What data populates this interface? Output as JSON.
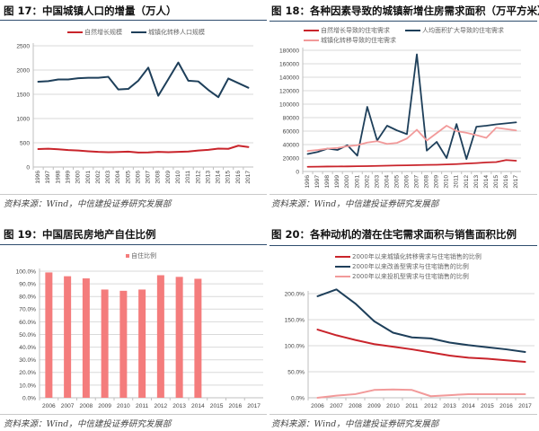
{
  "panels": [
    {
      "source": "资料来源：Wind，中信建投证券研究发展部"
    },
    {
      "source": "资料来源：Wind，中信建投证券研究发展部"
    },
    {
      "source": "资料来源：Wind，中信建投证券研究发展部"
    },
    {
      "source": "资料来源：Wind，中信建投证券研究发展部"
    }
  ],
  "chart_data": [
    {
      "type": "line",
      "title": "图 17：中国城镇人口的增量（万人）",
      "xlabel": "",
      "ylabel": "",
      "categories": [
        "1996",
        "1997",
        "1998",
        "1999",
        "2000",
        "2001",
        "2002",
        "2003",
        "2004",
        "2005",
        "2006",
        "2007",
        "2008",
        "2009",
        "2010",
        "2011",
        "2012",
        "2013",
        "2014",
        "2015",
        "2016",
        "2017"
      ],
      "ylim": [
        0,
        2500
      ],
      "yticks": [
        0,
        500,
        1000,
        1500,
        2000,
        2500
      ],
      "ytick_labels": [
        "0",
        "500",
        "1000",
        "1500",
        "2000",
        "2500"
      ],
      "grid": true,
      "legend": "top-center",
      "series": [
        {
          "name": "自然增长规模",
          "color": "#c9242b",
          "values": [
            370,
            378,
            365,
            350,
            340,
            325,
            312,
            305,
            310,
            318,
            298,
            302,
            312,
            305,
            312,
            320,
            340,
            355,
            380,
            375,
            440,
            412
          ]
        },
        {
          "name": "城镇化转移人口规模",
          "color": "#1e3f5a",
          "values": [
            1760,
            1770,
            1805,
            1805,
            1830,
            1840,
            1840,
            1860,
            1600,
            1610,
            1780,
            2050,
            1470,
            1810,
            2155,
            1780,
            1765,
            1590,
            1440,
            1825,
            1730,
            1635
          ]
        }
      ]
    },
    {
      "type": "line",
      "title": "图 18：各种因素导致的城镇新增住房需求面积（万平方米）",
      "xlabel": "",
      "ylabel": "",
      "categories": [
        "1996",
        "1997",
        "1998",
        "1999",
        "2000",
        "2001",
        "2002",
        "2003",
        "2004",
        "2005",
        "2006",
        "2007",
        "2008",
        "2009",
        "2010",
        "2011",
        "2012",
        "2013",
        "2014",
        "2015",
        "2016",
        "2017"
      ],
      "ylim": [
        0,
        180000
      ],
      "yticks": [
        0,
        20000,
        40000,
        60000,
        80000,
        100000,
        120000,
        140000,
        160000,
        180000
      ],
      "ytick_labels": [
        "0",
        "20000",
        "40000",
        "60000",
        "80000",
        "100000",
        "120000",
        "140000",
        "160000",
        "180000"
      ],
      "grid": true,
      "legend": "top",
      "series": [
        {
          "name": "自然增长导致的住宅需求",
          "color": "#c9242b",
          "values": [
            7000,
            7200,
            7400,
            7500,
            7600,
            7800,
            8000,
            8300,
            8700,
            9000,
            9200,
            9500,
            9800,
            10000,
            10500,
            11000,
            11800,
            12500,
            13500,
            14000,
            17000,
            16000
          ]
        },
        {
          "name": "人均面积扩大导致的住宅需求",
          "color": "#1e3f5a",
          "values": [
            26000,
            29000,
            34000,
            32000,
            39000,
            23500,
            96000,
            46000,
            68000,
            61000,
            55500,
            174000,
            31000,
            44000,
            20000,
            70500,
            18500,
            66500,
            68000,
            70000,
            71500,
            73000
          ]
        },
        {
          "name": "城镇化转移导致的住宅需求",
          "color": "#f29a9a",
          "values": [
            30500,
            32000,
            34000,
            35000,
            37500,
            39000,
            43000,
            45000,
            41000,
            42500,
            49000,
            62000,
            46000,
            57000,
            68000,
            60000,
            57500,
            54000,
            50000,
            65000,
            63000,
            61000
          ]
        }
      ]
    },
    {
      "type": "bar",
      "title": "图 19：中国居民房地产自住比例",
      "xlabel": "",
      "ylabel": "",
      "categories": [
        "2006",
        "2007",
        "2008",
        "2009",
        "2010",
        "2011",
        "2012",
        "2013",
        "2014",
        "2015",
        "2016",
        "2017"
      ],
      "ylim": [
        0,
        100
      ],
      "yticks": [
        0,
        10,
        20,
        30,
        40,
        50,
        60,
        70,
        80,
        90,
        100
      ],
      "ytick_labels": [
        "0.0%",
        "10.0%",
        "20.0%",
        "30.0%",
        "40.0%",
        "50.0%",
        "60.0%",
        "70.0%",
        "80.0%",
        "90.0%",
        "100.0%"
      ],
      "grid": true,
      "legend": "top-center",
      "series": [
        {
          "name": "自住比例",
          "color": "#f47c7c",
          "values": [
            99.0,
            96.0,
            94.3,
            85.5,
            84.5,
            85.5,
            96.8,
            95.5,
            94.0,
            null,
            null,
            null
          ]
        }
      ]
    },
    {
      "type": "line",
      "title": "图 20：各种动机的潜在住宅需求面积与销售面积比例",
      "xlabel": "",
      "ylabel": "",
      "categories": [
        "2006",
        "2007",
        "2008",
        "2009",
        "2010",
        "2011",
        "2012",
        "2013",
        "2014",
        "2015",
        "2016",
        "2017"
      ],
      "ylim": [
        0,
        200
      ],
      "yticks": [
        0,
        50,
        100,
        150,
        200
      ],
      "ytick_labels": [
        "0.0%",
        "50.0%",
        "100.0%",
        "150.0%",
        "200.0%"
      ],
      "grid": true,
      "legend": "top-center",
      "series": [
        {
          "name": "2000年以来城镇化转移需求与住宅销售的比例",
          "color": "#c9242b",
          "values": [
            131,
            120,
            111,
            103,
            98,
            93,
            87,
            81,
            77,
            75,
            72,
            69
          ]
        },
        {
          "name": "2000年以来改善型需求与住宅销售的比例",
          "color": "#1e3f5a",
          "values": [
            195,
            208,
            181,
            147,
            125,
            116,
            114,
            106,
            101,
            97,
            93,
            88
          ]
        },
        {
          "name": "2000年以来投机型需求与住宅销售的比例",
          "color": "#f29a9a",
          "values": [
            0,
            4,
            7,
            15,
            16,
            15,
            3,
            5,
            7,
            7,
            7,
            7
          ]
        }
      ]
    }
  ]
}
